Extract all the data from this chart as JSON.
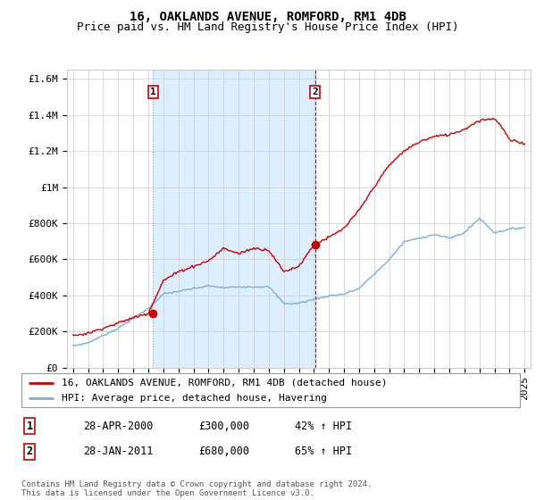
{
  "title": "16, OAKLANDS AVENUE, ROMFORD, RM1 4DB",
  "subtitle": "Price paid vs. HM Land Registry's House Price Index (HPI)",
  "ylim": [
    0,
    1650000
  ],
  "yticks": [
    0,
    200000,
    400000,
    600000,
    800000,
    1000000,
    1200000,
    1400000,
    1600000
  ],
  "ytick_labels": [
    "£0",
    "£200K",
    "£400K",
    "£600K",
    "£800K",
    "£1M",
    "£1.2M",
    "£1.4M",
    "£1.6M"
  ],
  "xlim": [
    1994.6,
    2025.4
  ],
  "xtick_years": [
    1995,
    1996,
    1997,
    1998,
    1999,
    2000,
    2001,
    2002,
    2003,
    2004,
    2005,
    2006,
    2007,
    2008,
    2009,
    2010,
    2011,
    2012,
    2013,
    2014,
    2015,
    2016,
    2017,
    2018,
    2019,
    2020,
    2021,
    2022,
    2023,
    2024,
    2025
  ],
  "sale1": {
    "date_num": 2000.31,
    "price": 300000,
    "label": "1"
  },
  "sale2": {
    "date_num": 2011.07,
    "price": 680000,
    "label": "2"
  },
  "legend_line1": "16, OAKLANDS AVENUE, ROMFORD, RM1 4DB (detached house)",
  "legend_line2": "HPI: Average price, detached house, Havering",
  "table_row1": [
    "1",
    "28-APR-2000",
    "£300,000",
    "42% ↑ HPI"
  ],
  "table_row2": [
    "2",
    "28-JAN-2011",
    "£680,000",
    "65% ↑ HPI"
  ],
  "footer": "Contains HM Land Registry data © Crown copyright and database right 2024.\nThis data is licensed under the Open Government Licence v3.0.",
  "line_color_red": "#cc0000",
  "line_color_blue": "#7ab0d4",
  "shade_color": "#ddeeff",
  "grid_color": "#cccccc",
  "bg_color": "#ffffff",
  "sale1_vline_color": "#aaaaaa",
  "sale1_vline_style": "dotted",
  "sale2_vline_color": "#cc0000",
  "sale2_vline_style": "dashed",
  "title_fontsize": 10,
  "subtitle_fontsize": 9,
  "tick_fontsize": 8,
  "legend_fontsize": 8,
  "table_fontsize": 8.5,
  "footer_fontsize": 6.5
}
